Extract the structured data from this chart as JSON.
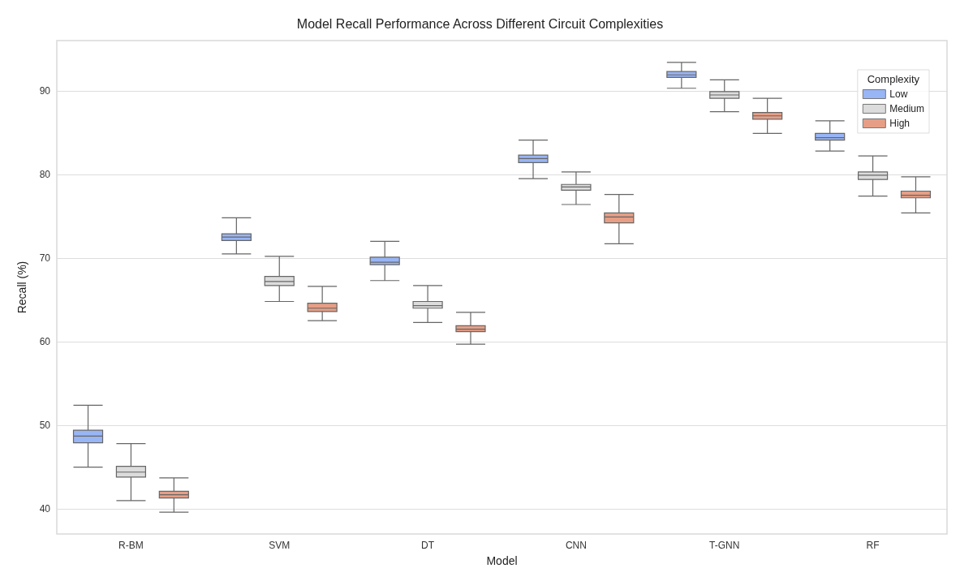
{
  "chart_data": {
    "type": "box",
    "title": "Model Recall Performance Across Different Circuit Complexities",
    "xlabel": "Model",
    "ylabel": "Recall (%)",
    "legend_title": "Complexity",
    "legend": "top right",
    "grid": "y",
    "categories": [
      "R-BM",
      "SVM",
      "DT",
      "CNN",
      "T-GNN",
      "RF"
    ],
    "ylim": [
      37,
      96
    ],
    "yticks": [
      40,
      50,
      60,
      70,
      80,
      90
    ],
    "series": [
      {
        "name": "Low",
        "color": "#98b5f5",
        "boxes": [
          {
            "low": 45.0,
            "q1": 47.9,
            "median": 48.7,
            "q3": 49.4,
            "high": 52.4
          },
          {
            "low": 70.5,
            "q1": 72.1,
            "median": 72.5,
            "q3": 72.9,
            "high": 74.8
          },
          {
            "low": 67.3,
            "q1": 69.2,
            "median": 69.5,
            "q3": 70.1,
            "high": 72.0
          },
          {
            "low": 79.5,
            "q1": 81.4,
            "median": 81.9,
            "q3": 82.3,
            "high": 84.1
          },
          {
            "low": 90.3,
            "q1": 91.6,
            "median": 91.9,
            "q3": 92.3,
            "high": 93.4
          },
          {
            "low": 82.8,
            "q1": 84.1,
            "median": 84.4,
            "q3": 84.9,
            "high": 86.4
          }
        ]
      },
      {
        "name": "Medium",
        "color": "#dcdcdc",
        "boxes": [
          {
            "low": 41.0,
            "q1": 43.8,
            "median": 44.4,
            "q3": 45.1,
            "high": 47.8
          },
          {
            "low": 64.8,
            "q1": 66.7,
            "median": 67.2,
            "q3": 67.8,
            "high": 70.2
          },
          {
            "low": 62.3,
            "q1": 64.0,
            "median": 64.3,
            "q3": 64.8,
            "high": 66.7
          },
          {
            "low": 76.4,
            "q1": 78.1,
            "median": 78.5,
            "q3": 78.8,
            "high": 80.3
          },
          {
            "low": 87.5,
            "q1": 89.1,
            "median": 89.5,
            "q3": 89.9,
            "high": 91.3
          },
          {
            "low": 77.4,
            "q1": 79.4,
            "median": 79.9,
            "q3": 80.3,
            "high": 82.2
          }
        ]
      },
      {
        "name": "High",
        "color": "#e69f86",
        "boxes": [
          {
            "low": 39.6,
            "q1": 41.3,
            "median": 41.7,
            "q3": 42.1,
            "high": 43.7
          },
          {
            "low": 62.5,
            "q1": 63.6,
            "median": 64.0,
            "q3": 64.6,
            "high": 66.6
          },
          {
            "low": 59.7,
            "q1": 61.2,
            "median": 61.5,
            "q3": 61.9,
            "high": 63.5
          },
          {
            "low": 71.7,
            "q1": 74.2,
            "median": 74.9,
            "q3": 75.4,
            "high": 77.6
          },
          {
            "low": 84.9,
            "q1": 86.6,
            "median": 87.0,
            "q3": 87.4,
            "high": 89.1
          },
          {
            "low": 75.4,
            "q1": 77.2,
            "median": 77.5,
            "q3": 78.0,
            "high": 79.7
          }
        ]
      }
    ]
  }
}
